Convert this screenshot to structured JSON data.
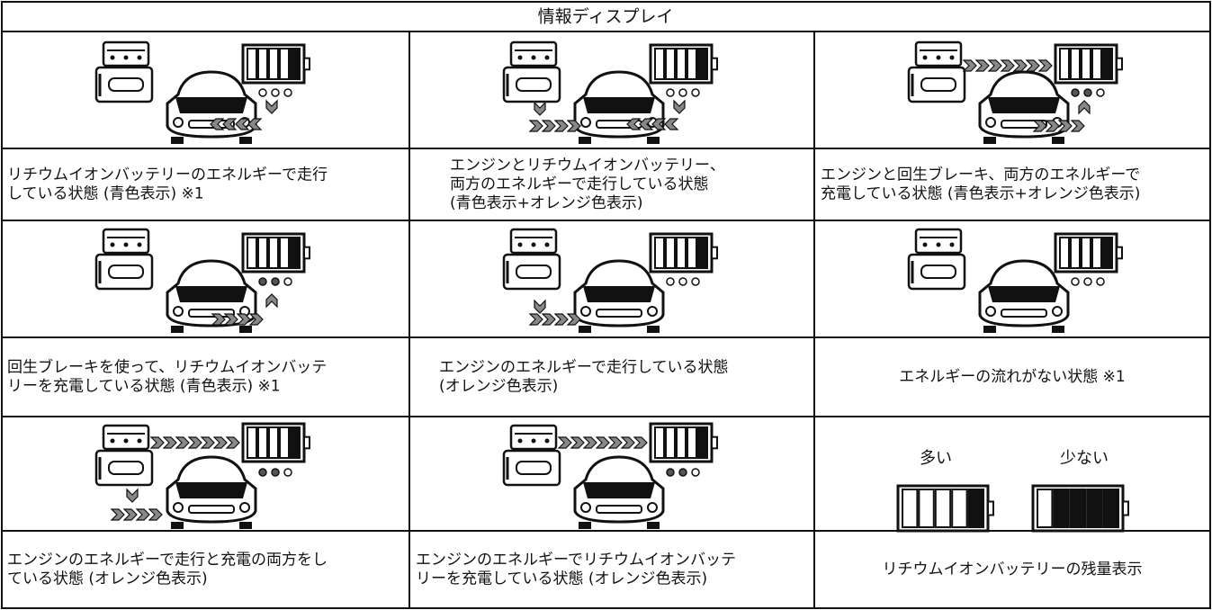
{
  "table": {
    "header": "情報ディスプレイ",
    "rows": [
      [
        {
          "lines": [
            "リチウムイオンバッテリーのエネルギーで走行",
            "している状態 (青色表示) ※1"
          ]
        },
        {
          "lines": [
            "エンジンとリチウムイオンバッテリー、",
            "両方のエネルギーで走行している状態",
            "(青色表示+オレンジ色表示)"
          ]
        },
        {
          "lines": [
            "エンジンと回生ブレーキ、両方のエネルギーで",
            "充電している状態 (青色表示+オレンジ色表示)"
          ]
        }
      ],
      [
        {
          "lines": [
            "回生ブレーキを使って、リチウムイオンバッテ",
            "リーを充電している状態 (青色表示) ※1"
          ]
        },
        {
          "lines": [
            "エンジンのエネルギーで走行している状態",
            "(オレンジ色表示)"
          ]
        },
        {
          "lines": [
            "エネルギーの流れがない状態 ※1"
          ]
        }
      ],
      [
        {
          "lines": [
            "エンジンのエネルギーで走行と充電の両方をし",
            "ている状態 (オレンジ色表示)"
          ]
        },
        {
          "lines": [
            "エンジンのエネルギーでリチウムイオンバッテ",
            "リーを充電している状態 (オレンジ色表示)"
          ]
        },
        {
          "lines": [
            "リチウムイオンバッテリーの残量表示"
          ],
          "legend": [
            "多い",
            "少ない"
          ]
        }
      ]
    ]
  }
}
